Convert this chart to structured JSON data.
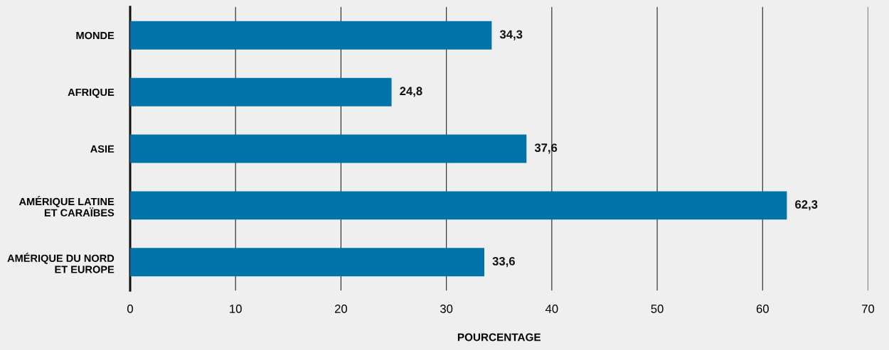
{
  "chart_data": {
    "type": "bar",
    "orientation": "horizontal",
    "xlabel": "POURCENTAGE",
    "categories": [
      "MONDE",
      "AFRIQUE",
      "ASIE",
      "AMÉRIQUE LATINE\nET CARAÏBES",
      "AMÉRIQUE DU NORD\nET EUROPE"
    ],
    "values": [
      34.3,
      24.8,
      37.6,
      62.3,
      33.6
    ],
    "value_labels": [
      "34,3",
      "24,8",
      "37,6",
      "62,3",
      "33,6"
    ],
    "color": "#0073a8",
    "xlim": [
      0,
      70
    ],
    "xticks": [
      0,
      10,
      20,
      30,
      40,
      50,
      60,
      70
    ],
    "grid": "x",
    "legend": false
  }
}
